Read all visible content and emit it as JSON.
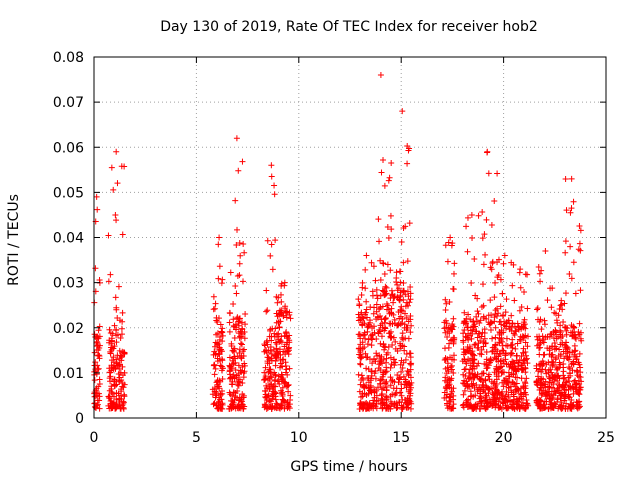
{
  "chart_data": {
    "type": "scatter",
    "title": "Day 130 of 2019, Rate Of TEC Index for receiver hob2",
    "xlabel": "GPS time / hours",
    "ylabel": "ROTI / TECUs",
    "xlim": [
      0,
      25
    ],
    "ylim": [
      0,
      0.08
    ],
    "xticks": [
      0,
      5,
      10,
      15,
      20,
      25
    ],
    "yticks": [
      0,
      0.01,
      0.02,
      0.03,
      0.04,
      0.05,
      0.06,
      0.07,
      0.08
    ],
    "grid": true,
    "marker": "+",
    "color": "#ff0000",
    "clusters": [
      {
        "x_start": 0.0,
        "x_end": 0.3,
        "base_max": 0.018,
        "peak": 0.049
      },
      {
        "x_start": 0.7,
        "x_end": 1.5,
        "base_max": 0.019,
        "peak": 0.059
      },
      {
        "x_start": 5.8,
        "x_end": 6.3,
        "base_max": 0.019,
        "peak": 0.04
      },
      {
        "x_start": 6.6,
        "x_end": 7.4,
        "base_max": 0.022,
        "peak": 0.062
      },
      {
        "x_start": 8.3,
        "x_end": 8.9,
        "base_max": 0.018,
        "peak": 0.056
      },
      {
        "x_start": 8.9,
        "x_end": 9.6,
        "base_max": 0.023,
        "peak": 0.03
      },
      {
        "x_start": 12.9,
        "x_end": 13.6,
        "base_max": 0.022,
        "peak": 0.036
      },
      {
        "x_start": 13.6,
        "x_end": 14.4,
        "base_max": 0.028,
        "peak": 0.076
      },
      {
        "x_start": 14.4,
        "x_end": 15.5,
        "base_max": 0.028,
        "peak": 0.068
      },
      {
        "x_start": 17.1,
        "x_end": 17.6,
        "base_max": 0.021,
        "peak": 0.04
      },
      {
        "x_start": 18.0,
        "x_end": 18.9,
        "base_max": 0.021,
        "peak": 0.045
      },
      {
        "x_start": 18.9,
        "x_end": 19.7,
        "base_max": 0.024,
        "peak": 0.059
      },
      {
        "x_start": 19.7,
        "x_end": 20.5,
        "base_max": 0.021,
        "peak": 0.036
      },
      {
        "x_start": 20.5,
        "x_end": 21.2,
        "base_max": 0.02,
        "peak": 0.033
      },
      {
        "x_start": 21.6,
        "x_end": 22.5,
        "base_max": 0.018,
        "peak": 0.037
      },
      {
        "x_start": 22.5,
        "x_end": 23.0,
        "base_max": 0.019,
        "peak": 0.026
      },
      {
        "x_start": 23.0,
        "x_end": 23.8,
        "base_max": 0.02,
        "peak": 0.053
      }
    ]
  }
}
